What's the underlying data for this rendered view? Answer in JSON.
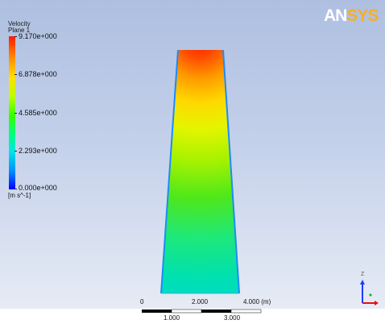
{
  "legend": {
    "title": "Velocity",
    "subtitle": "Plane 1",
    "values": [
      "9.170e+000",
      "6.878e+000",
      "4.585e+000",
      "2.293e+000",
      "0.000e+000"
    ],
    "units": "[m s^-1]"
  },
  "logo": {
    "part1": "AN",
    "part2": "SYS"
  },
  "scale": {
    "top_labels": [
      "0",
      "2.000",
      "4.000 (m)"
    ],
    "bottom_labels": [
      "1.000",
      "3.000"
    ]
  },
  "triad": {
    "axis_label": "Z"
  },
  "colors": {
    "max": "#ff1a00",
    "high": "#ffcc00",
    "mid": "#33ff00",
    "low": "#00e6a0",
    "min": "#0000ff"
  }
}
